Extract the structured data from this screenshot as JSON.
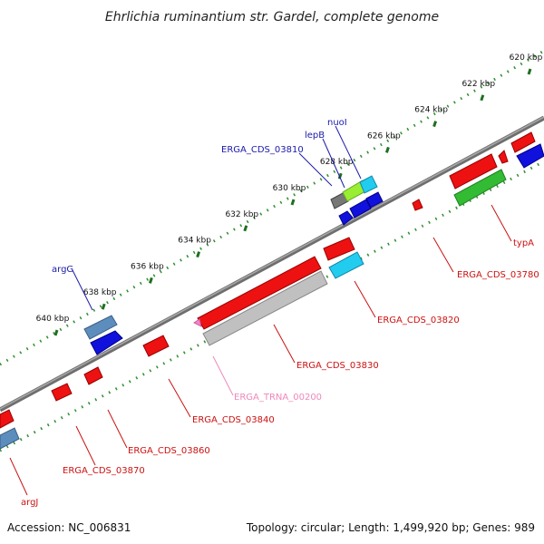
{
  "header": {
    "title": "Ehrlichia ruminantium str. Gardel, complete genome"
  },
  "footer": {
    "accession": "Accession: NC_006831",
    "summary": "Topology: circular; Length: 1,499,920 bp; Genes: 989"
  },
  "colors": {
    "background": "#ffffff",
    "backbone": "#808080",
    "tick_dots": "#2f8f2f",
    "tick_major": "#1f6f1f",
    "gene_red": "#ee1111",
    "gene_blue": "#1111dd",
    "gene_steel": "#5d8dbd",
    "gene_green": "#33bb33",
    "gene_cyan": "#22ccee",
    "gene_lime": "#99ee33",
    "gene_gray": "#777777",
    "gene_lightgray": "#c0c0c0",
    "trna_pink": "#ee88cc",
    "label_blue": "#1a1aaa",
    "label_red": "#cc1111",
    "label_pink": "#ee88bb"
  },
  "scale": {
    "ticks": [
      {
        "label": "620 kbp"
      },
      {
        "label": "622 kbp"
      },
      {
        "label": "624 kbp"
      },
      {
        "label": "626 kbp"
      },
      {
        "label": "628 kbp"
      },
      {
        "label": "630 kbp"
      },
      {
        "label": "632 kbp"
      },
      {
        "label": "634 kbp"
      },
      {
        "label": "636 kbp"
      },
      {
        "label": "638 kbp"
      },
      {
        "label": "640 kbp"
      }
    ]
  },
  "genes_top": [
    {
      "label": "nuoI"
    },
    {
      "label": "lepB"
    },
    {
      "label": "ERGA_CDS_03810"
    },
    {
      "label": "argG"
    }
  ],
  "genes_bottom": [
    {
      "label": "typA"
    },
    {
      "label": "ERGA_CDS_03780"
    },
    {
      "label": "ERGA_CDS_03820"
    },
    {
      "label": "ERGA_CDS_03830"
    },
    {
      "label": "ERGA_TRNA_00200"
    },
    {
      "label": "ERGA_CDS_03840"
    },
    {
      "label": "ERGA_CDS_03860"
    },
    {
      "label": "ERGA_CDS_03870"
    },
    {
      "label": "argJ"
    }
  ]
}
